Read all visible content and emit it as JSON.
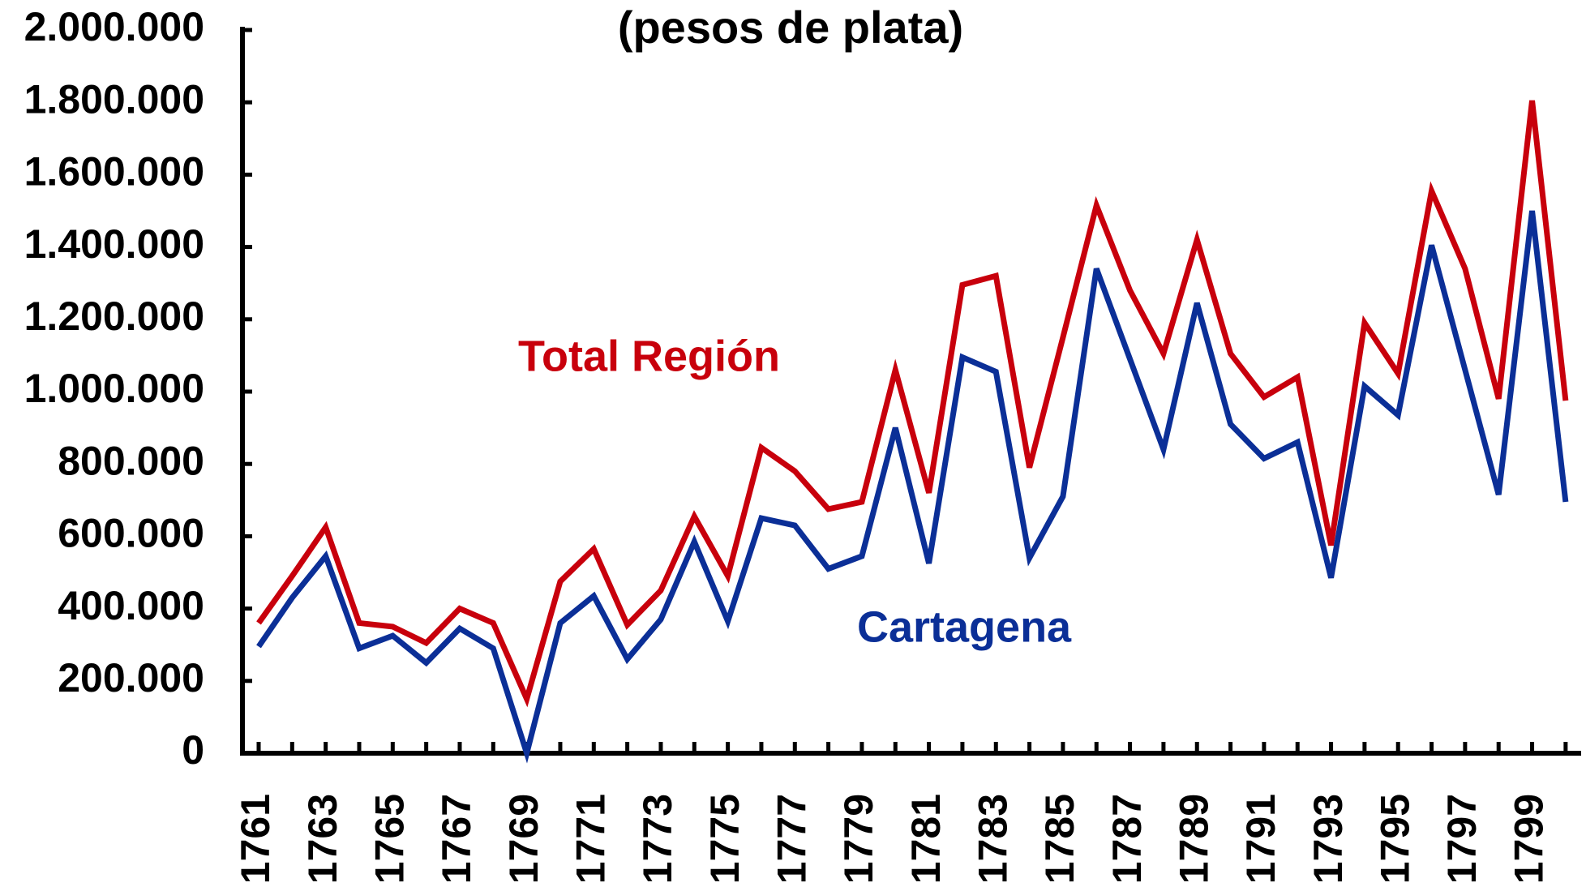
{
  "chart_data": {
    "type": "line",
    "title": "(pesos de plata)",
    "categories": [
      "1761",
      null,
      "1763",
      null,
      "1765",
      null,
      "1767",
      null,
      "1769",
      null,
      "1771",
      null,
      "1773",
      null,
      "1775",
      null,
      "1777",
      null,
      "1779",
      null,
      "1781",
      null,
      "1783",
      null,
      "1785",
      null,
      "1787",
      null,
      "1789",
      null,
      "1791",
      null,
      "1793",
      null,
      "1795",
      null,
      "1797",
      null,
      "1799",
      null
    ],
    "series": [
      {
        "name": "Total Región",
        "color": "#c8000c",
        "values": [
          360000,
          490000,
          625000,
          360000,
          350000,
          305000,
          400000,
          360000,
          150000,
          475000,
          565000,
          355000,
          450000,
          655000,
          490000,
          845000,
          780000,
          675000,
          695000,
          1060000,
          720000,
          1295000,
          1320000,
          790000,
          1150000,
          1515000,
          1280000,
          1105000,
          1420000,
          1105000,
          985000,
          1040000,
          575000,
          1190000,
          1050000,
          1555000,
          1340000,
          980000,
          1805000,
          975000
        ]
      },
      {
        "name": "Cartagena",
        "color": "#0b2f97",
        "values": [
          295000,
          430000,
          545000,
          290000,
          325000,
          250000,
          345000,
          290000,
          0,
          360000,
          435000,
          260000,
          370000,
          585000,
          365000,
          650000,
          630000,
          510000,
          545000,
          900000,
          525000,
          1095000,
          1055000,
          540000,
          710000,
          1340000,
          1090000,
          840000,
          1245000,
          910000,
          815000,
          860000,
          485000,
          1015000,
          935000,
          1405000,
          1060000,
          715000,
          1500000,
          695000
        ]
      }
    ],
    "ylim": [
      0,
      2000000
    ],
    "yticks": [
      0,
      {
        "value": 200000,
        "label": "200.000"
      },
      {
        "value": 400000,
        "label": "400.000"
      },
      {
        "value": 600000,
        "label": "600.000"
      },
      {
        "value": 800000,
        "label": "800.000"
      },
      {
        "value": 1000000,
        "label": "1.000.000"
      },
      {
        "value": 1200000,
        "label": "1.200.000"
      },
      {
        "value": 1400000,
        "label": "1.400.000"
      },
      {
        "value": 1600000,
        "label": "1.600.000"
      },
      {
        "value": 1800000,
        "label": "1.800.000"
      },
      {
        "value": 2000000,
        "label": "2.000.000"
      }
    ]
  }
}
